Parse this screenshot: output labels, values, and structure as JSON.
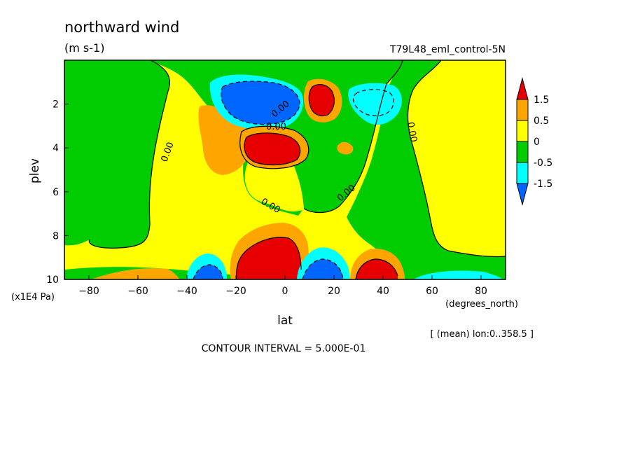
{
  "chart_data": {
    "type": "contour",
    "title": "northward wind",
    "units": "(m s-1)",
    "dataset": "T79L48_eml_control-5N",
    "xlabel": "lat",
    "xunits": "(degrees_north)",
    "ylabel": "plev",
    "yunits": "(x1E4 Pa)",
    "xlim": [
      -90,
      90
    ],
    "ylim": [
      10,
      0
    ],
    "xticks": [
      -80,
      -60,
      -40,
      -20,
      0,
      20,
      40,
      60,
      80
    ],
    "yticks": [
      2,
      4,
      6,
      8,
      10
    ],
    "contour_interval_note": "CONTOUR INTERVAL = 5.000E-01",
    "averaging_note": "[ (mean) lon:0..358.5 ]",
    "colorbar": {
      "levels": [
        "1.5",
        "0.5",
        "0",
        "-0.5",
        "-1.5"
      ],
      "colors": [
        "#e60000",
        "#ffa500",
        "#ffff00",
        "#00cc00",
        "#00ffff",
        "#0066ff"
      ]
    },
    "contour_labels": [
      "0.00",
      "0.00",
      "0.00",
      "0.00",
      "0.00",
      "0.00"
    ],
    "regions": [
      {
        "level": "green",
        "lat": [
          -90,
          -70
        ],
        "plev": [
          0,
          7
        ]
      },
      {
        "level": "orange",
        "lat": [
          -33,
          -18
        ],
        "plev": [
          2,
          5
        ]
      },
      {
        "level": "cyan",
        "lat": [
          -25,
          5
        ],
        "plev": [
          1,
          3
        ],
        "min": -2.0
      },
      {
        "level": "red",
        "lat": [
          9,
          22
        ],
        "plev": [
          1,
          3
        ],
        "max": 1.8
      },
      {
        "level": "red",
        "lat": [
          -15,
          2
        ],
        "plev": [
          3,
          5
        ],
        "max": 2.0
      },
      {
        "level": "cyan",
        "lat": [
          28,
          46
        ],
        "plev": [
          1,
          3
        ]
      },
      {
        "level": "red",
        "lat": [
          -20,
          10
        ],
        "plev": [
          8,
          10
        ],
        "max": 2.5
      },
      {
        "level": "blue",
        "lat": [
          7,
          30
        ],
        "plev": [
          9,
          10
        ],
        "min": -2.0
      },
      {
        "level": "red",
        "lat": [
          30,
          47
        ],
        "plev": [
          9,
          10
        ],
        "max": 2.0
      },
      {
        "level": "blue",
        "lat": [
          -45,
          -25
        ],
        "plev": [
          9,
          10
        ],
        "min": -1.5
      }
    ]
  },
  "colors": {
    "red": "#e60000",
    "orange": "#ffa500",
    "yellow": "#ffff00",
    "green": "#00cc00",
    "cyan": "#00ffff",
    "blue": "#0066ff",
    "darkred": "#b30000",
    "darkblue": "#0040d0"
  }
}
